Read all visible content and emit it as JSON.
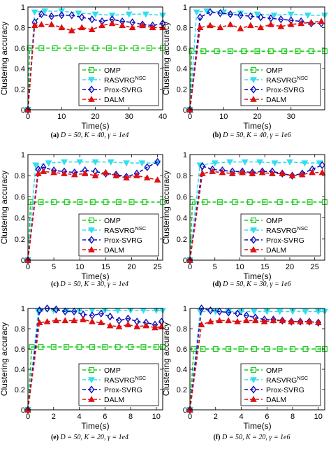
{
  "figure": {
    "ylabel": "Clustering accuracy",
    "xlabel": "Time(s)"
  },
  "legend": [
    {
      "name": "OMP",
      "color": "#22cc22",
      "marker": "square"
    },
    {
      "name": "RASVRG",
      "sup": "NSC",
      "color": "#33ddee",
      "marker": "triangle-down"
    },
    {
      "name": "Prox-SVRG",
      "color": "#1111bb",
      "marker": "diamond"
    },
    {
      "name": "DALM",
      "color": "#dd1111",
      "marker": "triangle-up"
    }
  ],
  "chart_data": [
    {
      "type": "line",
      "caption": {
        "letter": "(a)",
        "text": "D = 50, K = 40, γ = 1e4"
      },
      "xlim": [
        0,
        40
      ],
      "ylim": [
        0,
        1
      ],
      "xticks": [
        0,
        10,
        20,
        30,
        40
      ],
      "yticks": [
        0,
        0.2,
        0.4,
        0.6,
        0.8,
        1
      ],
      "legend_position": "bottom-right",
      "series": [
        {
          "name": "OMP",
          "x": [
            0,
            0.5,
            4,
            8,
            12,
            16,
            20,
            24,
            28,
            32,
            36,
            40
          ],
          "y": [
            0,
            0.6,
            0.6,
            0.6,
            0.6,
            0.6,
            0.6,
            0.6,
            0.6,
            0.6,
            0.6,
            0.6
          ]
        },
        {
          "name": "RASVRG",
          "x": [
            0,
            2,
            5,
            10,
            15,
            20,
            25,
            30,
            35,
            40
          ],
          "y": [
            0,
            0.95,
            0.96,
            0.96,
            0.94,
            0.93,
            0.92,
            0.93,
            0.93,
            0.92
          ]
        },
        {
          "name": "Prox-SVRG",
          "x": [
            0,
            2,
            4,
            7,
            10,
            13,
            16,
            19,
            22,
            25,
            28,
            31,
            34,
            37,
            40
          ],
          "y": [
            0,
            0.85,
            0.93,
            0.91,
            0.92,
            0.92,
            0.9,
            0.88,
            0.86,
            0.88,
            0.86,
            0.85,
            0.83,
            0.82,
            0.84
          ]
        },
        {
          "name": "DALM",
          "x": [
            0,
            2,
            4,
            7,
            10,
            13,
            16,
            19,
            22,
            25,
            28,
            31,
            34,
            37,
            40
          ],
          "y": [
            0,
            0.82,
            0.83,
            0.83,
            0.8,
            0.77,
            0.8,
            0.78,
            0.82,
            0.84,
            0.82,
            0.8,
            0.82,
            0.8,
            0.8
          ]
        }
      ]
    },
    {
      "type": "line",
      "caption": {
        "letter": "(b)",
        "text": "D = 50, K = 40, γ = 1e6"
      },
      "xlim": [
        0,
        40
      ],
      "ylim": [
        0,
        1
      ],
      "xticks": [
        0,
        10,
        20,
        30
      ],
      "yticks": [
        0,
        0.2,
        0.4,
        0.6,
        0.8,
        1
      ],
      "legend_position": "bottom-right",
      "series": [
        {
          "name": "OMP",
          "x": [
            0,
            0.5,
            4,
            8,
            12,
            16,
            20,
            24,
            28,
            32,
            36,
            40
          ],
          "y": [
            0,
            0.57,
            0.57,
            0.57,
            0.57,
            0.57,
            0.57,
            0.57,
            0.57,
            0.57,
            0.57,
            0.57
          ]
        },
        {
          "name": "RASVRG",
          "x": [
            0,
            2,
            5,
            10,
            15,
            20,
            25,
            30,
            35,
            40
          ],
          "y": [
            0,
            0.95,
            0.96,
            0.95,
            0.94,
            0.93,
            0.92,
            0.93,
            0.92,
            0.92
          ]
        },
        {
          "name": "Prox-SVRG",
          "x": [
            0,
            3,
            6,
            9,
            12,
            15,
            18,
            21,
            24,
            27,
            30,
            33,
            36,
            39
          ],
          "y": [
            0,
            0.9,
            0.95,
            0.94,
            0.93,
            0.92,
            0.91,
            0.9,
            0.89,
            0.88,
            0.87,
            0.86,
            0.84,
            0.84
          ]
        },
        {
          "name": "DALM",
          "x": [
            0,
            3,
            6,
            9,
            12,
            15,
            18,
            21,
            24,
            27,
            30,
            33,
            36,
            39
          ],
          "y": [
            0,
            0.8,
            0.82,
            0.8,
            0.83,
            0.79,
            0.82,
            0.8,
            0.83,
            0.81,
            0.83,
            0.84,
            0.85,
            0.86
          ]
        }
      ]
    },
    {
      "type": "line",
      "caption": {
        "letter": "(c)",
        "text": "D = 50, K = 30, γ = 1e4"
      },
      "xlim": [
        0,
        26
      ],
      "ylim": [
        0,
        1
      ],
      "xticks": [
        0,
        5,
        10,
        15,
        20,
        25
      ],
      "yticks": [
        0,
        0.2,
        0.4,
        0.6,
        0.8,
        1
      ],
      "legend_position": "bottom-right",
      "series": [
        {
          "name": "OMP",
          "x": [
            0,
            0.5,
            2.5,
            5,
            7.5,
            10,
            12.5,
            15,
            17.5,
            20,
            22.5,
            26
          ],
          "y": [
            0,
            0.55,
            0.55,
            0.55,
            0.55,
            0.55,
            0.55,
            0.55,
            0.55,
            0.55,
            0.55,
            0.55
          ]
        },
        {
          "name": "RASVRG",
          "x": [
            0,
            1.5,
            4,
            7,
            10,
            13,
            16,
            19,
            22,
            25
          ],
          "y": [
            0,
            0.9,
            0.92,
            0.93,
            0.93,
            0.93,
            0.93,
            0.92,
            0.92,
            0.92
          ]
        },
        {
          "name": "Prox-SVRG",
          "x": [
            0,
            2,
            3,
            5,
            7,
            9,
            11,
            13,
            15,
            17,
            19,
            21,
            23,
            25
          ],
          "y": [
            0,
            0.86,
            0.88,
            0.85,
            0.84,
            0.83,
            0.85,
            0.84,
            0.82,
            0.81,
            0.79,
            0.82,
            0.88,
            0.93
          ]
        },
        {
          "name": "DALM",
          "x": [
            0,
            2,
            3,
            5,
            7,
            9,
            11,
            13,
            15,
            17,
            19,
            21,
            23,
            25
          ],
          "y": [
            0,
            0.82,
            0.84,
            0.83,
            0.82,
            0.81,
            0.82,
            0.8,
            0.83,
            0.8,
            0.78,
            0.8,
            0.78,
            0.76
          ]
        }
      ]
    },
    {
      "type": "line",
      "caption": {
        "letter": "(d)",
        "text": "D = 50, K = 30, γ = 1e6"
      },
      "xlim": [
        0,
        27
      ],
      "ylim": [
        0,
        1
      ],
      "xticks": [
        0,
        5,
        10,
        15,
        20,
        25
      ],
      "yticks": [
        0,
        0.2,
        0.4,
        0.6,
        0.8,
        1
      ],
      "legend_position": "bottom-right",
      "series": [
        {
          "name": "OMP",
          "x": [
            0,
            0.5,
            3,
            6,
            9,
            12,
            15,
            18,
            21,
            24,
            27
          ],
          "y": [
            0,
            0.55,
            0.55,
            0.55,
            0.55,
            0.55,
            0.55,
            0.55,
            0.55,
            0.55,
            0.55
          ]
        },
        {
          "name": "RASVRG",
          "x": [
            0,
            2,
            5,
            8,
            11,
            14,
            17,
            20,
            23,
            26
          ],
          "y": [
            0,
            0.9,
            0.92,
            0.93,
            0.93,
            0.93,
            0.92,
            0.93,
            0.92,
            0.92
          ]
        },
        {
          "name": "Prox-SVRG",
          "x": [
            0,
            2.5,
            4.5,
            6.5,
            8.5,
            10.5,
            12.5,
            14.5,
            16.5,
            18.5,
            20.5,
            22.5,
            24.5,
            26.5
          ],
          "y": [
            0,
            0.89,
            0.86,
            0.85,
            0.84,
            0.84,
            0.83,
            0.84,
            0.84,
            0.82,
            0.8,
            0.82,
            0.86,
            0.9
          ]
        },
        {
          "name": "DALM",
          "x": [
            0,
            2.5,
            4.5,
            6.5,
            8.5,
            10.5,
            12.5,
            14.5,
            16.5,
            18.5,
            20.5,
            22.5,
            24.5,
            26.5
          ],
          "y": [
            0,
            0.82,
            0.84,
            0.83,
            0.82,
            0.83,
            0.82,
            0.83,
            0.82,
            0.82,
            0.8,
            0.81,
            0.83,
            0.83
          ]
        }
      ]
    },
    {
      "type": "line",
      "caption": {
        "letter": "(e)",
        "text": "D = 50, K = 20, γ = 1e4"
      },
      "xlim": [
        0,
        10.5
      ],
      "ylim": [
        0,
        1
      ],
      "xticks": [
        0,
        2,
        4,
        6,
        8,
        10
      ],
      "yticks": [
        0,
        0.2,
        0.4,
        0.6,
        0.8,
        1
      ],
      "legend_position": "bottom-right",
      "series": [
        {
          "name": "OMP",
          "x": [
            0,
            0.3,
            1,
            2,
            3,
            4,
            5,
            6,
            7,
            8,
            9,
            10,
            10.5
          ],
          "y": [
            0,
            0.62,
            0.62,
            0.62,
            0.62,
            0.62,
            0.62,
            0.62,
            0.62,
            0.62,
            0.62,
            0.62,
            0.62
          ]
        },
        {
          "name": "RASVRG",
          "x": [
            0,
            0.8,
            2,
            3,
            4,
            5,
            6,
            7,
            8,
            9,
            10,
            10.5
          ],
          "y": [
            0,
            0.97,
            0.98,
            0.98,
            0.98,
            0.98,
            0.98,
            0.98,
            0.98,
            0.98,
            0.98,
            0.98
          ]
        },
        {
          "name": "Prox-SVRG",
          "x": [
            0,
            0.9,
            1.5,
            2.2,
            2.9,
            3.6,
            4.3,
            5,
            5.7,
            6.4,
            7.1,
            7.8,
            8.5,
            9.2,
            9.9,
            10.4
          ],
          "y": [
            0,
            0.98,
            1.0,
            0.99,
            0.97,
            0.97,
            0.94,
            0.93,
            0.95,
            0.92,
            0.88,
            0.9,
            0.87,
            0.86,
            0.84,
            0.87
          ]
        },
        {
          "name": "DALM",
          "x": [
            0,
            0.9,
            1.5,
            2.2,
            2.9,
            3.6,
            4.3,
            5,
            5.7,
            6.4,
            7.1,
            7.8,
            8.5,
            9.2,
            9.9,
            10.4
          ],
          "y": [
            0,
            0.86,
            0.87,
            0.88,
            0.88,
            0.88,
            0.89,
            0.87,
            0.86,
            0.83,
            0.82,
            0.84,
            0.82,
            0.83,
            0.81,
            0.82
          ]
        }
      ]
    },
    {
      "type": "line",
      "caption": {
        "letter": "(f)",
        "text": "D = 50, K = 20, γ = 1e6"
      },
      "xlim": [
        0,
        10.5
      ],
      "ylim": [
        0,
        1
      ],
      "xticks": [
        0,
        2,
        4,
        6,
        8,
        10
      ],
      "yticks": [
        0,
        0.2,
        0.4,
        0.6,
        0.8,
        1
      ],
      "legend_position": "bottom-right",
      "series": [
        {
          "name": "OMP",
          "x": [
            0,
            0.3,
            1,
            2,
            3,
            4,
            5,
            6,
            7,
            8,
            9,
            10,
            10.5
          ],
          "y": [
            0,
            0.6,
            0.6,
            0.6,
            0.6,
            0.6,
            0.6,
            0.6,
            0.6,
            0.6,
            0.6,
            0.6,
            0.6
          ]
        },
        {
          "name": "RASVRG",
          "x": [
            0,
            0.8,
            2,
            3,
            4,
            5,
            6,
            7,
            8,
            9,
            10,
            10.5
          ],
          "y": [
            0,
            0.97,
            0.97,
            0.97,
            0.97,
            0.97,
            0.97,
            0.97,
            0.97,
            0.97,
            0.97,
            0.97
          ]
        },
        {
          "name": "Prox-SVRG",
          "x": [
            0,
            0.9,
            1.6,
            2.3,
            3.0,
            3.7,
            4.4,
            5.1,
            5.8,
            6.5,
            7.2,
            7.9,
            8.6,
            9.3,
            10.0
          ],
          "y": [
            0,
            1.0,
            0.98,
            0.97,
            0.96,
            0.95,
            0.93,
            0.91,
            0.89,
            0.89,
            0.88,
            0.87,
            0.87,
            0.87,
            0.86
          ]
        },
        {
          "name": "DALM",
          "x": [
            0,
            0.9,
            1.6,
            2.3,
            3.0,
            3.7,
            4.4,
            5.1,
            5.8,
            6.5,
            7.2,
            7.9,
            8.6,
            9.3,
            10.0
          ],
          "y": [
            0,
            0.84,
            0.87,
            0.88,
            0.88,
            0.87,
            0.88,
            0.88,
            0.87,
            0.88,
            0.88,
            0.87,
            0.87,
            0.87,
            0.86
          ]
        }
      ]
    }
  ]
}
